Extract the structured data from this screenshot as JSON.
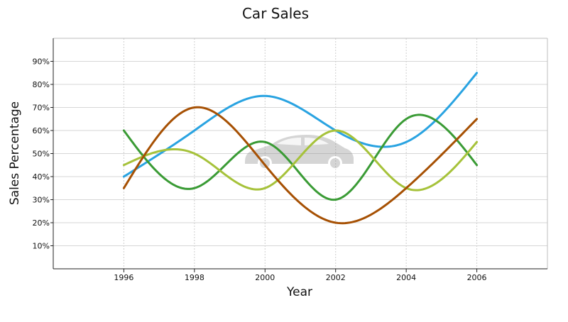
{
  "chart_data": {
    "type": "line",
    "title": "Car Sales",
    "xlabel": "Year",
    "ylabel": "Sales Percentage",
    "x": [
      1996,
      1998,
      2000,
      2002,
      2004,
      2006
    ],
    "x_tick_labels": [
      "1996",
      "1998",
      "2000",
      "2002",
      "2004",
      "2006"
    ],
    "xlim": [
      1994,
      2008
    ],
    "ylim": [
      0,
      100
    ],
    "y_tick_values": [
      10,
      20,
      30,
      40,
      50,
      60,
      70,
      80,
      90
    ],
    "y_tick_labels": [
      "10%",
      "20%",
      "30%",
      "40%",
      "50%",
      "60%",
      "70%",
      "80%",
      "90%"
    ],
    "smooth": true,
    "grid": true,
    "legend": "none",
    "background_watermark": "car-icon",
    "series": [
      {
        "color": "#29a3e1",
        "values": [
          40,
          60,
          75,
          60,
          55,
          85
        ]
      },
      {
        "color": "#3a9b35",
        "values": [
          60,
          35,
          55,
          30,
          65,
          45
        ]
      },
      {
        "color": "#a6c23a",
        "values": [
          45,
          50,
          35,
          60,
          35,
          55
        ]
      },
      {
        "color": "#a65003",
        "values": [
          35,
          70,
          45,
          20,
          35,
          65
        ]
      }
    ]
  }
}
